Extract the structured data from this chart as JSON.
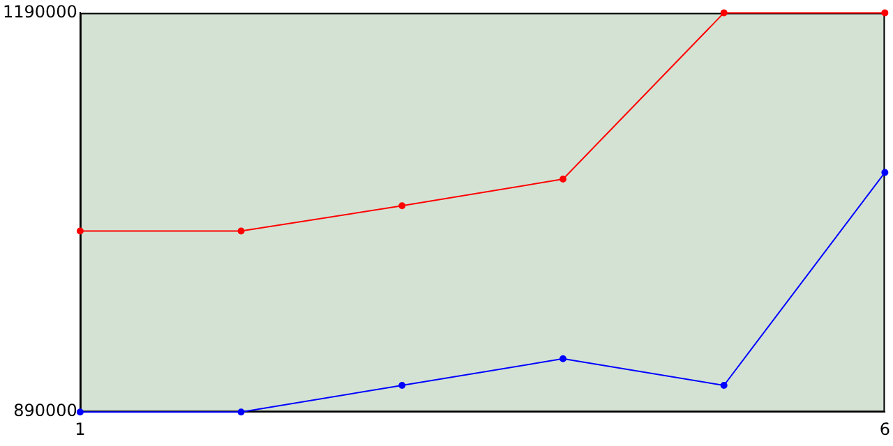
{
  "chart_data": {
    "type": "line",
    "x": [
      1,
      2,
      3,
      4,
      5,
      6
    ],
    "series": [
      {
        "color": "#ff0000",
        "values": [
          1026000,
          1026000,
          1045000,
          1065000,
          1190000,
          1190000
        ]
      },
      {
        "color": "#0000ff",
        "values": [
          890000,
          890000,
          910000,
          930000,
          910000,
          1070000
        ]
      }
    ],
    "xlim": [
      1,
      6
    ],
    "xticks": [
      1,
      6
    ],
    "ylim": [
      890000,
      1190000
    ],
    "yticks": [
      890000,
      1190000
    ],
    "grid": false,
    "legend": false,
    "marker": "circle",
    "line_style": "solid"
  }
}
